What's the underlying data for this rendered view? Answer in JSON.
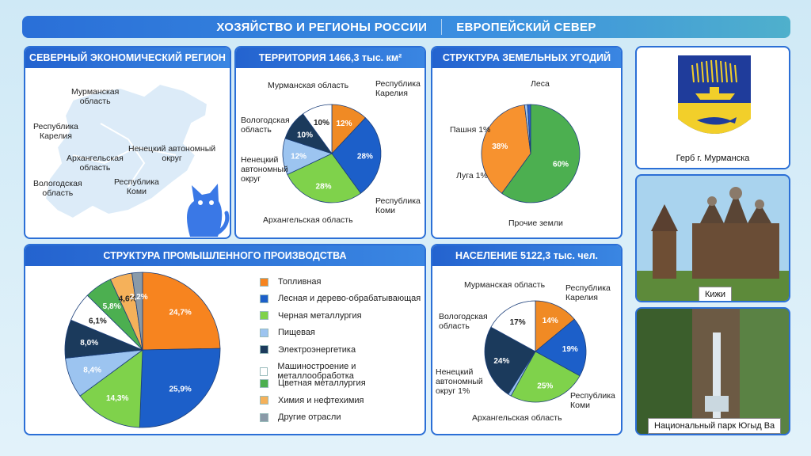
{
  "header": {
    "left": "ХОЗЯЙСТВО И РЕГИОНЫ РОССИИ",
    "right": "ЕВРОПЕЙСКИЙ СЕВЕР"
  },
  "region_panel": {
    "title": "СЕВЕРНЫЙ ЭКОНОМИЧЕСКИЙ РЕГИОН",
    "labels": {
      "murmansk": "Мурманская\nобласть",
      "karelia": "Республика\nКарелия",
      "arkhangelsk": "Архангельская\nобласть",
      "nenets": "Ненецкий автономный\nокруг",
      "vologda": "Вологодская\nобласть",
      "komi": "Республика\nКоми"
    }
  },
  "territory_panel": {
    "title": "ТЕРРИТОРИЯ 1466,3 тыс. км²",
    "labels": {
      "murmansk": "Мурманская область",
      "karelia": "Республика\nКарелия",
      "vologda": "Вологодская\nобласть",
      "nenets": "Ненецкий\nавтономный\nокруг",
      "arkhangelsk": "Архангельская область",
      "komi": "Республика\nКоми"
    }
  },
  "land_panel": {
    "title": "СТРУКТУРА ЗЕМЕЛЬНЫХ УГОДИЙ",
    "labels": {
      "forest": "Леса",
      "arable": "Пашня 1%",
      "meadow": "Луга 1%",
      "other": "Прочие земли"
    }
  },
  "industry_panel": {
    "title": "СТРУКТУРА ПРОМЫШЛЕННОГО ПРОИЗВОДСТВА"
  },
  "population_panel": {
    "title": "НАСЕЛЕНИЕ 5122,3 тыс. чел.",
    "labels": {
      "murmansk": "Мурманская область",
      "karelia": "Республика\nКарелия",
      "vologda": "Вологодская\nобласть",
      "nenets": "Ненецкий\nавтономный\nокруг 1%",
      "arkhangelsk": "Архангельская область",
      "komi": "Республика\nКоми"
    }
  },
  "photos": {
    "emblem": "Герб г. Мурманска",
    "kizhi": "Кижи",
    "park": "Национальный парк Югыд Ва"
  },
  "chart_data": [
    {
      "type": "pie",
      "title": "ТЕРРИТОРИЯ 1466,3 тыс. км²",
      "categories": [
        "Республика Карелия",
        "Республика Коми",
        "Архангельская область",
        "Ненецкий автономный округ",
        "Вологодская область",
        "Мурманская область"
      ],
      "values": [
        12,
        28,
        28,
        12,
        10,
        10
      ],
      "value_labels": [
        "12%",
        "28%",
        "28%",
        "12%",
        "10%",
        "10%"
      ],
      "colors": [
        "#f08a24",
        "#1c5fc9",
        "#7fd24b",
        "#9cc4f0",
        "#1b3a5c",
        "#ffffff"
      ]
    },
    {
      "type": "pie",
      "title": "СТРУКТУРА ЗЕМЕЛЬНЫХ УГОДИЙ",
      "categories": [
        "Леса",
        "Прочие земли",
        "Луга",
        "Пашня"
      ],
      "values": [
        60,
        38,
        1,
        1
      ],
      "value_labels": [
        "60%",
        "38%",
        "",
        ""
      ],
      "colors": [
        "#4caf50",
        "#f7922f",
        "#9ec3ef",
        "#2d62cf"
      ]
    },
    {
      "type": "pie",
      "title": "СТРУКТУРА ПРОМЫШЛЕННОГО ПРОИЗВОДСТВА",
      "categories": [
        "Топливная",
        "Лесная и дерево-обрабатывающая",
        "Черная металлургия",
        "Пищевая",
        "Электроэнергетика",
        "Машиностроение и металлообработка",
        "Цветная металлургия",
        "Химия и нефтехимия",
        "Другие отрасли"
      ],
      "values": [
        24.7,
        25.9,
        14.3,
        8.4,
        8.0,
        6.1,
        5.8,
        4.6,
        2.2
      ],
      "value_labels": [
        "24,7%",
        "25,9%",
        "14,3%",
        "8,4%",
        "8,0%",
        "6,1%",
        "5,8%",
        "4,6%",
        "2,2%"
      ],
      "colors": [
        "#f7841f",
        "#1c5fc9",
        "#7fd24b",
        "#9cc4f0",
        "#1b3a5c",
        "#ffffff",
        "#4caf50",
        "#f5b15a",
        "#8a9aa8"
      ]
    },
    {
      "type": "pie",
      "title": "НАСЕЛЕНИЕ 5122,3 тыс. чел.",
      "categories": [
        "Республика Карелия",
        "Республика Коми",
        "Архангельская область",
        "Ненецкий автономный округ",
        "Вологодская область",
        "Мурманская область"
      ],
      "values": [
        14,
        19,
        25,
        1,
        24,
        17
      ],
      "value_labels": [
        "14%",
        "19%",
        "25%",
        "",
        "24%",
        "17%"
      ],
      "colors": [
        "#f08a24",
        "#1c5fc9",
        "#7fd24b",
        "#9cc4f0",
        "#1b3a5c",
        "#ffffff"
      ]
    }
  ]
}
